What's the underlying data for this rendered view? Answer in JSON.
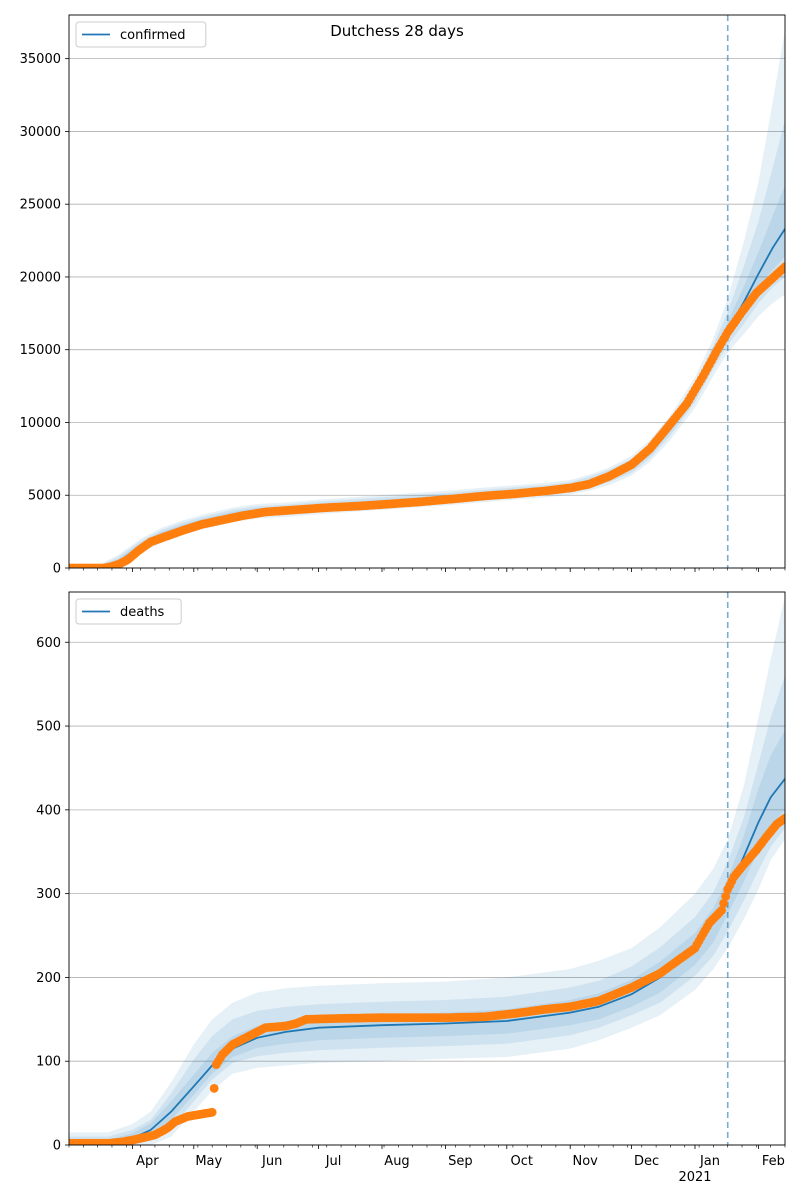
{
  "suptitle": "Dutchess 28 days",
  "colors": {
    "model_line": "#1f77b4",
    "band": "#1f77b4",
    "observed": "#ff7f0e",
    "vline": "#1f77b4",
    "grid": "#b0b0b0"
  },
  "x_axis": {
    "month_ticks": [
      {
        "label": "Apr",
        "day": 31
      },
      {
        "label": "May",
        "day": 61
      },
      {
        "label": "Jun",
        "day": 92
      },
      {
        "label": "Jul",
        "day": 122
      },
      {
        "label": "Aug",
        "day": 153
      },
      {
        "label": "Sep",
        "day": 184
      },
      {
        "label": "Oct",
        "day": 214
      },
      {
        "label": "Nov",
        "day": 245
      },
      {
        "label": "Dec",
        "day": 275
      },
      {
        "label": "Jan",
        "day": 306
      },
      {
        "label": "Feb",
        "day": 337
      }
    ],
    "year_label": "2021",
    "range": [
      "2020-03-01",
      "2021-02-14"
    ]
  },
  "chart_data": [
    {
      "type": "line",
      "legend": "confirmed",
      "legend_position": "top-left",
      "ylim": [
        0,
        38000
      ],
      "yticks": [
        "0",
        "5000",
        "10000",
        "15000",
        "20000",
        "25000",
        "30000",
        "35000"
      ],
      "forecast_start": "2021-01-17",
      "model": {
        "x": [
          "2020-03-01",
          "2020-03-15",
          "2020-03-25",
          "2020-04-05",
          "2020-04-15",
          "2020-04-25",
          "2020-05-05",
          "2020-05-20",
          "2020-06-01",
          "2020-06-15",
          "2020-07-01",
          "2020-08-01",
          "2020-09-01",
          "2020-10-01",
          "2020-10-20",
          "2020-11-01",
          "2020-11-10",
          "2020-11-20",
          "2020-12-01",
          "2020-12-10",
          "2020-12-20",
          "2021-01-01",
          "2021-01-10",
          "2021-01-17",
          "2021-01-25",
          "2021-02-01",
          "2021-02-08",
          "2021-02-14"
        ],
        "y": [
          0,
          50,
          400,
          1500,
          2200,
          2700,
          3100,
          3600,
          3850,
          3950,
          4150,
          4450,
          4750,
          5100,
          5300,
          5500,
          5800,
          6300,
          7000,
          8000,
          9600,
          12000,
          14400,
          16300,
          18300,
          20200,
          22000,
          23300
        ],
        "bands": [
          {
            "lower": [
              0,
              0,
              0,
              1050,
              1700,
              2250,
              2650,
              3150,
              3400,
              3500,
              3700,
              4000,
              4300,
              4650,
              4850,
              5050,
              5300,
              5700,
              6350,
              7300,
              8800,
              11000,
              13200,
              14800,
              16100,
              17300,
              18200,
              18800
            ],
            "upper": [
              120,
              150,
              900,
              2000,
              2750,
              3250,
              3650,
              4150,
              4400,
              4500,
              4700,
              5000,
              5300,
              5650,
              5850,
              6050,
              6400,
              6900,
              7700,
              8800,
              10500,
              13100,
              15800,
              18500,
              22500,
              26500,
              32000,
              37000
            ]
          },
          {
            "lower": [
              0,
              0,
              80,
              1200,
              1850,
              2400,
              2800,
              3300,
              3550,
              3650,
              3850,
              4150,
              4450,
              4800,
              5000,
              5200,
              5450,
              5900,
              6550,
              7550,
              9100,
              11400,
              13700,
              15300,
              16800,
              18200,
              19300,
              20000
            ],
            "upper": [
              80,
              120,
              750,
              1850,
              2600,
              3100,
              3500,
              4000,
              4250,
              4350,
              4550,
              4850,
              5150,
              5500,
              5700,
              5900,
              6250,
              6750,
              7500,
              8550,
              10200,
              12700,
              15300,
              17600,
              20800,
              23800,
              27500,
              30800
            ]
          },
          {
            "lower": [
              0,
              10,
              200,
              1350,
              2000,
              2550,
              2950,
              3450,
              3700,
              3800,
              4000,
              4300,
              4600,
              4950,
              5150,
              5350,
              5600,
              6100,
              6750,
              7750,
              9350,
              11700,
              14000,
              15800,
              17500,
              19200,
              20500,
              21400
            ],
            "upper": [
              50,
              100,
              600,
              1700,
              2450,
              2950,
              3350,
              3850,
              4100,
              4200,
              4400,
              4700,
              5000,
              5350,
              5550,
              5750,
              6050,
              6550,
              7300,
              8300,
              9900,
              12400,
              14900,
              16900,
              19400,
              21700,
              24200,
              26300
            ]
          }
        ]
      },
      "observed": {
        "x": [
          "2020-03-01",
          "2020-03-10",
          "2020-03-18",
          "2020-03-22",
          "2020-03-26",
          "2020-03-30",
          "2020-04-04",
          "2020-04-10",
          "2020-04-18",
          "2020-04-26",
          "2020-05-05",
          "2020-05-15",
          "2020-05-25",
          "2020-06-05",
          "2020-06-20",
          "2020-07-05",
          "2020-07-20",
          "2020-08-05",
          "2020-08-20",
          "2020-09-05",
          "2020-09-20",
          "2020-10-05",
          "2020-10-20",
          "2020-11-01",
          "2020-11-10",
          "2020-11-20",
          "2020-12-01",
          "2020-12-10",
          "2020-12-20",
          "2020-12-28",
          "2021-01-05",
          "2021-01-12",
          "2021-01-17",
          "2021-01-24",
          "2021-01-31",
          "2021-02-07",
          "2021-02-14"
        ],
        "y": [
          0,
          0,
          0,
          100,
          300,
          600,
          1200,
          1800,
          2200,
          2600,
          3000,
          3300,
          3600,
          3850,
          4000,
          4150,
          4250,
          4400,
          4550,
          4750,
          4950,
          5100,
          5300,
          5500,
          5750,
          6300,
          7100,
          8200,
          9900,
          11300,
          13200,
          15000,
          16200,
          17600,
          18900,
          19800,
          20700
        ]
      }
    },
    {
      "type": "line",
      "legend": "deaths",
      "legend_position": "top-left",
      "ylim": [
        0,
        660
      ],
      "yticks": [
        "0",
        "100",
        "200",
        "300",
        "400",
        "500",
        "600"
      ],
      "forecast_start": "2021-01-17",
      "model": {
        "x": [
          "2020-03-01",
          "2020-03-20",
          "2020-04-01",
          "2020-04-10",
          "2020-04-20",
          "2020-05-01",
          "2020-05-10",
          "2020-05-20",
          "2020-06-01",
          "2020-06-15",
          "2020-07-01",
          "2020-08-01",
          "2020-09-01",
          "2020-10-01",
          "2020-11-01",
          "2020-11-15",
          "2020-12-01",
          "2020-12-15",
          "2021-01-01",
          "2021-01-10",
          "2021-01-17",
          "2021-01-25",
          "2021-02-01",
          "2021-02-07",
          "2021-02-14"
        ],
        "y": [
          0,
          2,
          8,
          18,
          40,
          70,
          95,
          115,
          128,
          135,
          140,
          143,
          145,
          148,
          158,
          165,
          180,
          200,
          235,
          265,
          300,
          345,
          385,
          415,
          437
        ],
        "bands": [
          {
            "lower": [
              0,
              0,
              0,
              0,
              10,
              40,
              65,
              85,
              92,
              95,
              98,
              100,
              103,
              105,
              115,
              125,
              140,
              155,
              185,
              210,
              235,
              270,
              305,
              340,
              365
            ],
            "upper": [
              15,
              15,
              25,
              40,
              75,
              120,
              150,
              170,
              182,
              187,
              190,
              193,
              195,
              200,
              210,
              220,
              235,
              260,
              300,
              330,
              365,
              430,
              510,
              580,
              655
            ]
          },
          {
            "lower": [
              0,
              0,
              0,
              5,
              20,
              52,
              78,
              98,
              106,
              110,
              113,
              116,
              118,
              121,
              131,
              140,
              155,
              170,
              202,
              226,
              255,
              292,
              328,
              356,
              378
            ],
            "upper": [
              10,
              10,
              18,
              30,
              62,
              102,
              130,
              150,
              160,
              165,
              168,
              171,
              173,
              177,
              188,
              196,
              213,
              236,
              272,
              302,
              338,
              392,
              455,
              510,
              560
            ]
          },
          {
            "lower": [
              0,
              0,
              3,
              10,
              30,
              60,
              85,
              105,
              116,
              121,
              125,
              128,
              130,
              133,
              143,
              150,
              165,
              182,
              215,
              242,
              275,
              315,
              352,
              380,
              400
            ],
            "upper": [
              5,
              6,
              14,
              26,
              52,
              84,
              110,
              130,
              142,
              148,
              152,
              155,
              158,
              162,
              173,
              181,
              197,
              219,
              253,
              283,
              318,
              370,
              425,
              465,
              495
            ]
          }
        ]
      },
      "observed": {
        "x": [
          "2020-03-01",
          "2020-03-20",
          "2020-03-28",
          "2020-04-05",
          "2020-04-12",
          "2020-04-18",
          "2020-04-22",
          "2020-04-28",
          "2020-05-05",
          "2020-05-10",
          "2020-05-12",
          "2020-05-15",
          "2020-05-20",
          "2020-05-28",
          "2020-06-05",
          "2020-06-15",
          "2020-06-20",
          "2020-06-25",
          "2020-07-10",
          "2020-08-01",
          "2020-09-01",
          "2020-09-20",
          "2020-10-05",
          "2020-10-20",
          "2020-11-01",
          "2020-11-15",
          "2020-12-01",
          "2020-12-15",
          "2021-01-01",
          "2021-01-08",
          "2021-01-14",
          "2021-01-17",
          "2021-01-20",
          "2021-01-25",
          "2021-01-31",
          "2021-02-05",
          "2021-02-10",
          "2021-02-14"
        ],
        "y": [
          2,
          2,
          4,
          8,
          12,
          20,
          28,
          34,
          37,
          39,
          96,
          108,
          120,
          130,
          140,
          142,
          145,
          150,
          151,
          152,
          152,
          153,
          157,
          162,
          165,
          172,
          188,
          205,
          235,
          265,
          280,
          305,
          320,
          335,
          352,
          368,
          383,
          390
        ]
      }
    }
  ]
}
